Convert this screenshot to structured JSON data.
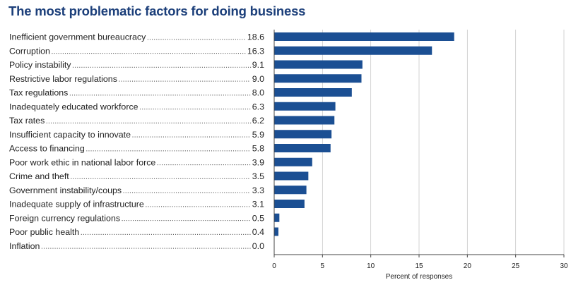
{
  "chart_data": {
    "type": "bar",
    "orientation": "horizontal",
    "title": "The most problematic factors for doing business",
    "xlabel": "Percent of responses",
    "ylabel": "",
    "xlim": [
      0,
      30
    ],
    "xticks": [
      0,
      5,
      10,
      15,
      20,
      25,
      30
    ],
    "grid": true,
    "bar_color": "#1b4f93",
    "categories": [
      "Inefficient government bureaucracy",
      "Corruption",
      "Policy instability",
      "Restrictive labor regulations",
      "Tax regulations",
      "Inadequately educated workforce",
      "Tax rates",
      "Insufficient capacity to innovate",
      "Access to financing",
      "Poor work ethic in national labor force",
      "Crime and theft",
      "Government instability/coups",
      "Inadequate supply of infrastructure",
      "Foreign currency regulations",
      "Poor public health",
      "Inflation"
    ],
    "value_labels": [
      "18.6",
      "16.3",
      "9.1",
      "9.0",
      "8.0",
      "6.3",
      "6.2",
      "5.9",
      "5.8",
      "3.9",
      "3.5",
      "3.3",
      "3.1",
      "0.5",
      "0.4",
      "0.0"
    ],
    "values": [
      18.6,
      16.3,
      9.1,
      9.0,
      8.0,
      6.3,
      6.2,
      5.9,
      5.8,
      3.9,
      3.5,
      3.3,
      3.1,
      0.5,
      0.4,
      0.0
    ]
  }
}
